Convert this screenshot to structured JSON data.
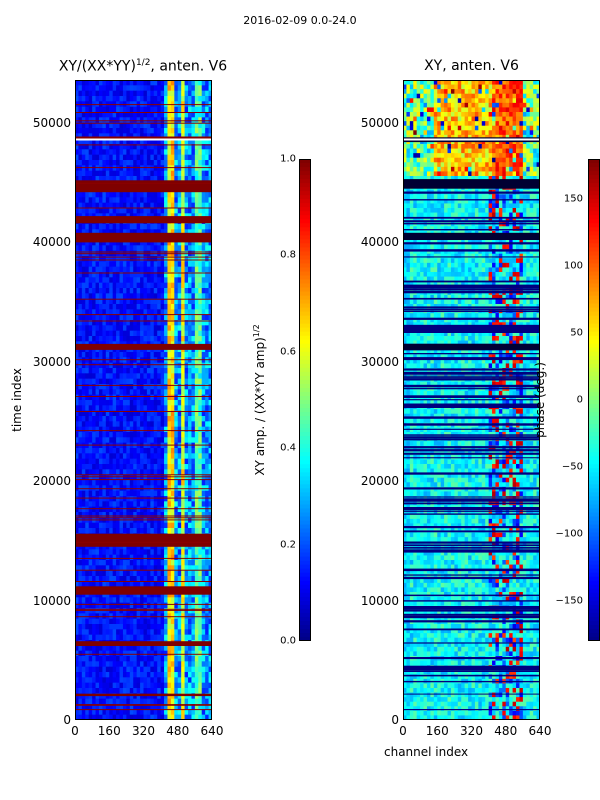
{
  "suptitle": "2016-02-09 0.0-24.0",
  "chart_data": [
    {
      "type": "heatmap",
      "title_main": "XY/(XX*YY)",
      "title_exp": "1/2",
      "title_tail": ", anten. V6",
      "xlabel": "",
      "ylabel": "time index",
      "xlim": [
        0,
        640
      ],
      "ylim": [
        0,
        53600
      ],
      "xticks": [
        0,
        160,
        320,
        480,
        640
      ],
      "yticks": [
        0,
        10000,
        20000,
        30000,
        40000,
        50000
      ],
      "colorbar": {
        "label_main": "XY amp. / (XX*YY amp)",
        "label_exp": "1/2",
        "vmin": 0.0,
        "vmax": 1.0,
        "ticks": [
          "0.0",
          "0.2",
          "0.4",
          "0.6",
          "0.8",
          "1.0"
        ]
      },
      "colormap": "jet"
    },
    {
      "type": "heatmap",
      "title": "XY, anten. V6",
      "xlabel": "channel index",
      "ylabel": "",
      "xlim": [
        0,
        640
      ],
      "ylim": [
        0,
        53600
      ],
      "xticks": [
        0,
        160,
        320,
        480,
        640
      ],
      "yticks": [
        0,
        10000,
        20000,
        30000,
        40000,
        50000
      ],
      "colorbar": {
        "label": "phase (deg.)",
        "vmin": -180,
        "vmax": 180,
        "ticks": [
          "150",
          "100",
          "50",
          "0",
          "−50",
          "−100",
          "−150"
        ]
      },
      "colormap": "jet"
    }
  ]
}
